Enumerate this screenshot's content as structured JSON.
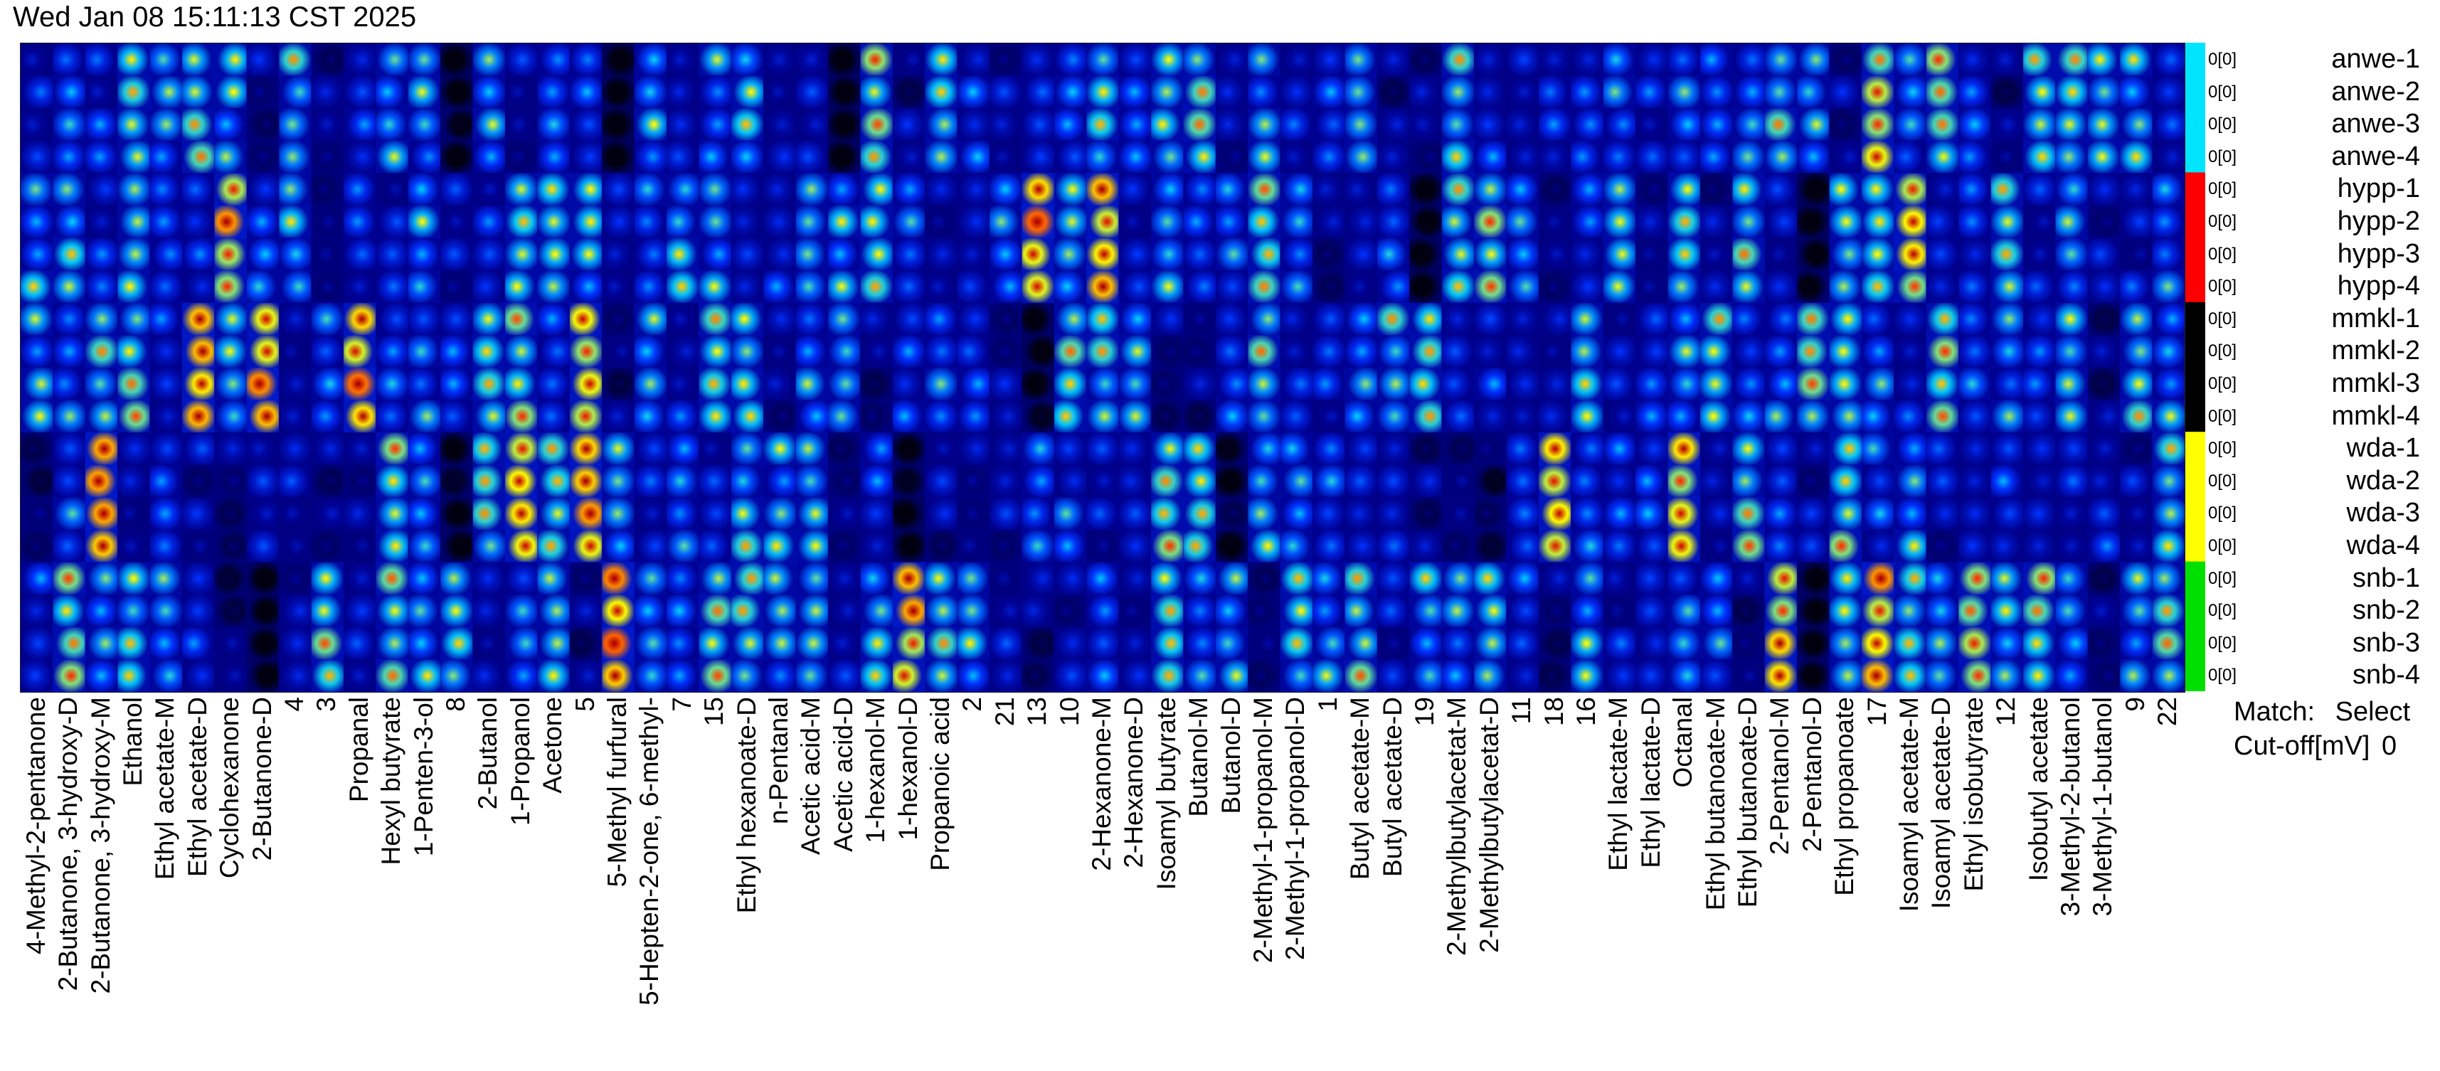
{
  "timestamp": "Wed Jan 08 15:11:13 CST 2025",
  "match_label": "Match:",
  "match_value": "Select",
  "cutoff_label": "Cut-off[mV]",
  "cutoff_value": "0",
  "colors": {
    "scale": [
      "#000010",
      "#000090",
      "#0030ff",
      "#00c8ff",
      "#ffff00",
      "#ff3000",
      "#b00000"
    ],
    "groups": {
      "anwe": "#00e5ff",
      "hypp": "#ff0000",
      "mmkl": "#000000",
      "wda": "#ffff00",
      "snb": "#00e000"
    }
  },
  "chart_data": {
    "type": "heatmap",
    "samples": [
      {
        "name": "anwe-1",
        "group": "anwe",
        "value": "0[0]"
      },
      {
        "name": "anwe-2",
        "group": "anwe",
        "value": "0[0]"
      },
      {
        "name": "anwe-3",
        "group": "anwe",
        "value": "0[0]"
      },
      {
        "name": "anwe-4",
        "group": "anwe",
        "value": "0[0]"
      },
      {
        "name": "hypp-1",
        "group": "hypp",
        "value": "0[0]"
      },
      {
        "name": "hypp-2",
        "group": "hypp",
        "value": "0[0]"
      },
      {
        "name": "hypp-3",
        "group": "hypp",
        "value": "0[0]"
      },
      {
        "name": "hypp-4",
        "group": "hypp",
        "value": "0[0]"
      },
      {
        "name": "mmkl-1",
        "group": "mmkl",
        "value": "0[0]"
      },
      {
        "name": "mmkl-2",
        "group": "mmkl",
        "value": "0[0]"
      },
      {
        "name": "mmkl-3",
        "group": "mmkl",
        "value": "0[0]"
      },
      {
        "name": "mmkl-4",
        "group": "mmkl",
        "value": "0[0]"
      },
      {
        "name": "wda-1",
        "group": "wda",
        "value": "0[0]"
      },
      {
        "name": "wda-2",
        "group": "wda",
        "value": "0[0]"
      },
      {
        "name": "wda-3",
        "group": "wda",
        "value": "0[0]"
      },
      {
        "name": "wda-4",
        "group": "wda",
        "value": "0[0]"
      },
      {
        "name": "snb-1",
        "group": "snb",
        "value": "0[0]"
      },
      {
        "name": "snb-2",
        "group": "snb",
        "value": "0[0]"
      },
      {
        "name": "snb-3",
        "group": "snb",
        "value": "0[0]"
      },
      {
        "name": "snb-4",
        "group": "snb",
        "value": "0[0]"
      }
    ],
    "compounds": [
      "4-Methyl-2-pentanone",
      "2-Butanone, 3-hydroxy-D",
      "2-Butanone, 3-hydroxy-M",
      "Ethanol",
      "Ethyl acetate-M",
      "Ethyl acetate-D",
      "Cyclohexanone",
      "2-Butanone-D",
      "4",
      "3",
      "Propanal",
      "Hexyl butyrate",
      "1-Penten-3-ol",
      "8",
      "2-Butanol",
      "1-Propanol",
      "Acetone",
      "5",
      "5-Methyl furfural",
      "5-Hepten-2-one, 6-methyl-",
      "7",
      "15",
      "Ethyl hexanoate-D",
      "n-Pentanal",
      "Acetic acid-M",
      "Acetic acid-D",
      "1-hexanol-M",
      "1-hexanol-D",
      "Propanoic acid",
      "2",
      "21",
      "13",
      "10",
      "2-Hexanone-M",
      "2-Hexanone-D",
      "Isoamyl butyrate",
      "Butanol-M",
      "Butanol-D",
      "2-Methyl-1-propanol-M",
      "2-Methyl-1-propanol-D",
      "1",
      "Butyl acetate-M",
      "Butyl acetate-D",
      "19",
      "2-Methylbutylacetat-M",
      "2-Methylbutylacetat-D",
      "11",
      "18",
      "16",
      "Ethyl lactate-M",
      "Ethyl lactate-D",
      "Octanal",
      "Ethyl butanoate-M",
      "Ethyl butanoate-D",
      "2-Pentanol-M",
      "2-Pentanol-D",
      "Ethyl propanoate",
      "17",
      "Isoamyl acetate-M",
      "Isoamyl acetate-D",
      "Ethyl isobutyrate",
      "12",
      "Isobutyl acetate",
      "3-Methyl-2-butanol",
      "3-Methyl-1-butanol",
      "9",
      "22"
    ]
  }
}
